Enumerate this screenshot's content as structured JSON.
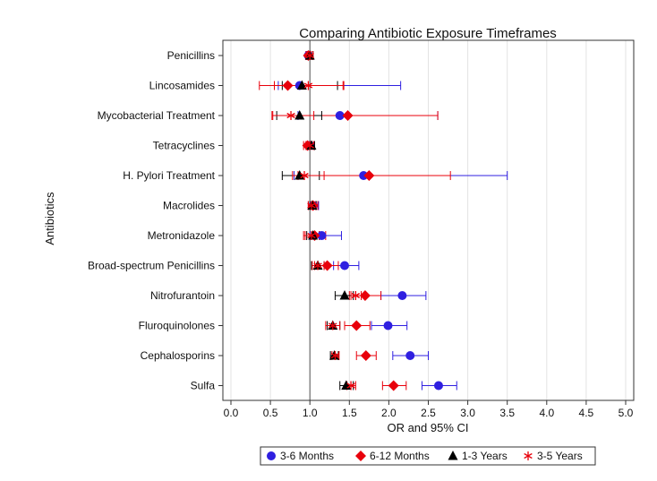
{
  "chart_data": {
    "type": "scatter",
    "title": "Comparing Antibiotic Exposure Timeframes",
    "xlabel": "OR and 95% CI",
    "ylabel": "Antibiotics",
    "xlim": [
      0.0,
      5.0
    ],
    "xticks": [
      "0.0",
      "0.5",
      "1.0",
      "1.5",
      "2.0",
      "2.5",
      "3.0",
      "3.5",
      "4.0",
      "4.5",
      "5.0"
    ],
    "reference_line": 1.0,
    "grid": "vertical",
    "legend_position": "bottom",
    "categories": [
      "Penicillins",
      "Lincosamides",
      "Mycobacterial Treatment",
      "Tetracyclines",
      "H. Pylori Treatment",
      "Macrolides",
      "Metronidazole",
      "Broad-spectrum Penicillins",
      "Nitrofurantoin",
      "Fluroquinolones",
      "Cephalosporins",
      "Sulfa"
    ],
    "series": [
      {
        "name": "3-6 Months",
        "color": "#2f1fe0",
        "marker": "circle",
        "or": [
          0.98,
          0.87,
          1.38,
          1.0,
          1.68,
          1.04,
          1.15,
          1.44,
          2.17,
          1.99,
          2.27,
          2.63
        ],
        "low": [
          0.95,
          0.6,
          0.85,
          0.96,
          0.8,
          0.98,
          1.0,
          1.3,
          1.9,
          1.78,
          2.05,
          2.42
        ],
        "high": [
          1.02,
          2.15,
          2.62,
          1.05,
          3.5,
          1.11,
          1.4,
          1.62,
          2.47,
          2.23,
          2.5,
          2.86
        ]
      },
      {
        "name": "6-12 Months",
        "color": "#e8000b",
        "marker": "diamond",
        "or": [
          0.98,
          0.72,
          1.48,
          0.97,
          1.75,
          1.04,
          1.06,
          1.22,
          1.7,
          1.59,
          1.71,
          2.06
        ],
        "low": [
          0.95,
          0.36,
          0.53,
          0.92,
          0.85,
          0.98,
          0.92,
          1.06,
          1.5,
          1.44,
          1.59,
          1.92
        ],
        "high": [
          1.02,
          1.43,
          2.62,
          1.03,
          2.78,
          1.1,
          1.2,
          1.36,
          1.9,
          1.76,
          1.84,
          2.22
        ]
      },
      {
        "name": "1-3 Years",
        "color": "#000000",
        "marker": "triangle",
        "or": [
          1.0,
          0.9,
          0.87,
          1.02,
          0.87,
          1.03,
          1.04,
          1.1,
          1.44,
          1.29,
          1.31,
          1.46
        ],
        "low": [
          0.97,
          0.65,
          0.58,
          0.99,
          0.65,
          1.0,
          0.96,
          1.02,
          1.32,
          1.22,
          1.26,
          1.38
        ],
        "high": [
          1.04,
          1.35,
          1.15,
          1.06,
          1.12,
          1.08,
          1.12,
          1.18,
          1.55,
          1.38,
          1.36,
          1.55
        ]
      },
      {
        "name": "3-5 Years",
        "color": "#e8000b",
        "marker": "star",
        "or": [
          1.0,
          0.98,
          0.76,
          1.0,
          0.93,
          1.02,
          1.02,
          1.1,
          1.58,
          1.29,
          1.32,
          1.52
        ],
        "low": [
          0.96,
          0.55,
          0.52,
          0.95,
          0.78,
          0.98,
          0.94,
          1.03,
          1.52,
          1.2,
          1.28,
          1.47
        ],
        "high": [
          1.04,
          1.42,
          1.05,
          1.05,
          1.18,
          1.07,
          1.12,
          1.18,
          1.65,
          1.38,
          1.37,
          1.58
        ]
      }
    ]
  }
}
